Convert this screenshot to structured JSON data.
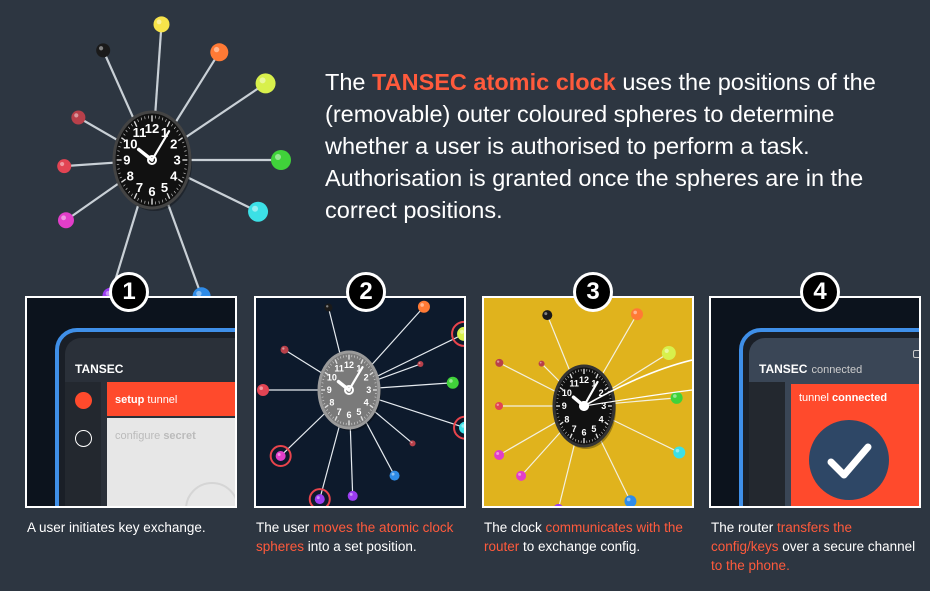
{
  "intro": {
    "lead": "The ",
    "highlight": "TANSEC atomic clock",
    "rest": " uses the positions of the (removable) outer coloured spheres to determine whether a user is authorised to perform a task. Authorisation is granted once the spheres are in the correct positions."
  },
  "clock_numerals": [
    "12",
    "3",
    "6",
    "9",
    "1",
    "2",
    "4",
    "5",
    "7",
    "8",
    "10",
    "11"
  ],
  "sphere_colors": [
    "#f7e34a",
    "#ff7a35",
    "#d8f04c",
    "#40d23a",
    "#3ce0e6",
    "#2f8ce8",
    "#9b3cf2",
    "#e23ec9",
    "#e24453",
    "#b8404a",
    "#1a1a1a"
  ],
  "steps": [
    {
      "number": "1",
      "caption": [
        {
          "text": "A user initiates key exchange.",
          "highlight": false
        }
      ]
    },
    {
      "number": "2",
      "caption": [
        {
          "text": "The user ",
          "highlight": false
        },
        {
          "text": "moves the atomic clock spheres",
          "highlight": true
        },
        {
          "text": " into a set position.",
          "highlight": false
        }
      ]
    },
    {
      "number": "3",
      "caption": [
        {
          "text": "The clock ",
          "highlight": false
        },
        {
          "text": "communicates with the router",
          "highlight": true
        },
        {
          "text": " to exchange config.",
          "highlight": false
        }
      ]
    },
    {
      "number": "4",
      "caption": [
        {
          "text": "The router ",
          "highlight": false
        },
        {
          "text": "transfers the config/keys",
          "highlight": true
        },
        {
          "text": " over a secure channel ",
          "highlight": false
        },
        {
          "text": "to the phone.",
          "highlight": true
        }
      ]
    }
  ],
  "phone1": {
    "brand": "TANSEC",
    "menu_setup_bold": "setup",
    "menu_setup_rest": " tunnel",
    "menu_configure_rest": "configure ",
    "menu_configure_bold": "secret"
  },
  "phone4": {
    "brand": "TANSEC",
    "status": "connected",
    "tunnel_rest": "tunnel ",
    "tunnel_bold": "connected"
  },
  "colors": {
    "accent": "#ff5a3c",
    "background": "#2d3641",
    "panel3_bg": "#e0b31d",
    "phone_frame": "#3f8fe8",
    "check_circle": "#2e4766"
  }
}
